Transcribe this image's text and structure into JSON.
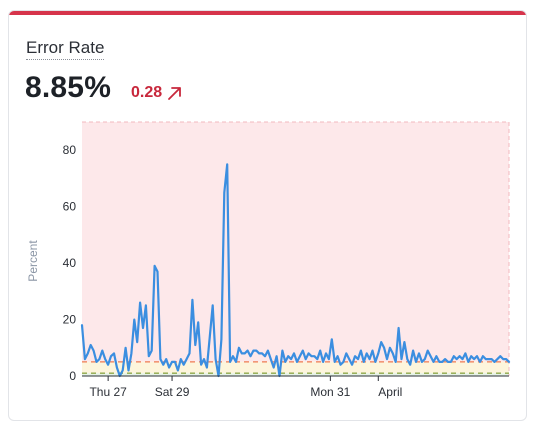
{
  "metric": {
    "title": "Error Rate",
    "value": "8.85%",
    "delta": "0.28"
  },
  "colors": {
    "accent_bar": "#d6344b",
    "delta": "#c8283c",
    "line": "#3b8ee0",
    "danger_zone": "#fde8ea",
    "warning_zone": "#fdf5dc"
  },
  "icons": {
    "delta": "arrow-up-right-icon"
  },
  "chart_data": {
    "type": "line",
    "ylabel": "Percent",
    "ylim": [
      0,
      90
    ],
    "yticks": [
      0,
      20,
      40,
      60,
      80
    ],
    "xticks": [
      {
        "label": "Thu 27",
        "x": 0.18
      },
      {
        "label": "Sat 29",
        "x": 0.62
      },
      {
        "label": "Mon 31",
        "x": 1.71
      },
      {
        "label": "April",
        "x": 2.04
      }
    ],
    "xrange": [
      0,
      2.94
    ],
    "zones": [
      {
        "name": "danger",
        "from": 5,
        "to": 90
      },
      {
        "name": "warning",
        "from": 1,
        "to": 5
      }
    ],
    "thresholds": [
      5,
      1
    ],
    "series": [
      {
        "values": [
          [
            0.0,
            18
          ],
          [
            0.02,
            6
          ],
          [
            0.04,
            8
          ],
          [
            0.06,
            11
          ],
          [
            0.08,
            9
          ],
          [
            0.1,
            5
          ],
          [
            0.12,
            6
          ],
          [
            0.14,
            9
          ],
          [
            0.16,
            6
          ],
          [
            0.18,
            4
          ],
          [
            0.2,
            7
          ],
          [
            0.22,
            8
          ],
          [
            0.24,
            3
          ],
          [
            0.26,
            0
          ],
          [
            0.28,
            2
          ],
          [
            0.3,
            10
          ],
          [
            0.32,
            2
          ],
          [
            0.34,
            8
          ],
          [
            0.36,
            20
          ],
          [
            0.38,
            12
          ],
          [
            0.4,
            26
          ],
          [
            0.42,
            17
          ],
          [
            0.44,
            25
          ],
          [
            0.46,
            7
          ],
          [
            0.48,
            9
          ],
          [
            0.5,
            39
          ],
          [
            0.52,
            37
          ],
          [
            0.54,
            6
          ],
          [
            0.56,
            4
          ],
          [
            0.58,
            6
          ],
          [
            0.6,
            3
          ],
          [
            0.62,
            5
          ],
          [
            0.64,
            5
          ],
          [
            0.66,
            2
          ],
          [
            0.68,
            6
          ],
          [
            0.7,
            4
          ],
          [
            0.72,
            6
          ],
          [
            0.74,
            8
          ],
          [
            0.76,
            27
          ],
          [
            0.78,
            11
          ],
          [
            0.8,
            19
          ],
          [
            0.82,
            4
          ],
          [
            0.84,
            6
          ],
          [
            0.86,
            3
          ],
          [
            0.88,
            14
          ],
          [
            0.9,
            25
          ],
          [
            0.92,
            6
          ],
          [
            0.94,
            0
          ],
          [
            0.96,
            13
          ],
          [
            0.98,
            65
          ],
          [
            1.0,
            75
          ],
          [
            1.02,
            5
          ],
          [
            1.04,
            7
          ],
          [
            1.06,
            5
          ],
          [
            1.08,
            10
          ],
          [
            1.1,
            8
          ],
          [
            1.12,
            8
          ],
          [
            1.14,
            9
          ],
          [
            1.16,
            7
          ],
          [
            1.18,
            9
          ],
          [
            1.2,
            9
          ],
          [
            1.22,
            8
          ],
          [
            1.24,
            8
          ],
          [
            1.26,
            7
          ],
          [
            1.28,
            9
          ],
          [
            1.3,
            6
          ],
          [
            1.32,
            3
          ],
          [
            1.34,
            7
          ],
          [
            1.36,
            0
          ],
          [
            1.38,
            9
          ],
          [
            1.4,
            5
          ],
          [
            1.42,
            7
          ],
          [
            1.44,
            6
          ],
          [
            1.46,
            8
          ],
          [
            1.48,
            5
          ],
          [
            1.5,
            7
          ],
          [
            1.52,
            9
          ],
          [
            1.54,
            6
          ],
          [
            1.56,
            8
          ],
          [
            1.58,
            7
          ],
          [
            1.6,
            7
          ],
          [
            1.62,
            6
          ],
          [
            1.64,
            9
          ],
          [
            1.66,
            5
          ],
          [
            1.68,
            8
          ],
          [
            1.7,
            6
          ],
          [
            1.72,
            13
          ],
          [
            1.74,
            5
          ],
          [
            1.76,
            7
          ],
          [
            1.78,
            4
          ],
          [
            1.8,
            5
          ],
          [
            1.82,
            8
          ],
          [
            1.84,
            6
          ],
          [
            1.86,
            4
          ],
          [
            1.88,
            7
          ],
          [
            1.9,
            6
          ],
          [
            1.92,
            9
          ],
          [
            1.94,
            5
          ],
          [
            1.96,
            8
          ],
          [
            1.98,
            6
          ],
          [
            2.0,
            9
          ],
          [
            2.02,
            5
          ],
          [
            2.04,
            8
          ],
          [
            2.06,
            12
          ],
          [
            2.08,
            10
          ],
          [
            2.1,
            6
          ],
          [
            2.12,
            10
          ],
          [
            2.14,
            8
          ],
          [
            2.16,
            5
          ],
          [
            2.18,
            17
          ],
          [
            2.2,
            6
          ],
          [
            2.22,
            12
          ],
          [
            2.24,
            6
          ],
          [
            2.26,
            4
          ],
          [
            2.28,
            9
          ],
          [
            2.3,
            5
          ],
          [
            2.32,
            8
          ],
          [
            2.34,
            5
          ],
          [
            2.36,
            6
          ],
          [
            2.38,
            9
          ],
          [
            2.4,
            7
          ],
          [
            2.42,
            5
          ],
          [
            2.44,
            7
          ],
          [
            2.46,
            5
          ],
          [
            2.48,
            5
          ],
          [
            2.5,
            6
          ],
          [
            2.52,
            5
          ],
          [
            2.54,
            5
          ],
          [
            2.56,
            7
          ],
          [
            2.58,
            6
          ],
          [
            2.6,
            7
          ],
          [
            2.62,
            6
          ],
          [
            2.64,
            8
          ],
          [
            2.66,
            5
          ],
          [
            2.68,
            7
          ],
          [
            2.7,
            6
          ],
          [
            2.72,
            7
          ],
          [
            2.74,
            5
          ],
          [
            2.76,
            7
          ],
          [
            2.78,
            6
          ],
          [
            2.8,
            6
          ],
          [
            2.82,
            6
          ],
          [
            2.84,
            5
          ],
          [
            2.86,
            6
          ],
          [
            2.88,
            7
          ],
          [
            2.9,
            6
          ],
          [
            2.92,
            6
          ],
          [
            2.94,
            5
          ]
        ]
      }
    ]
  }
}
